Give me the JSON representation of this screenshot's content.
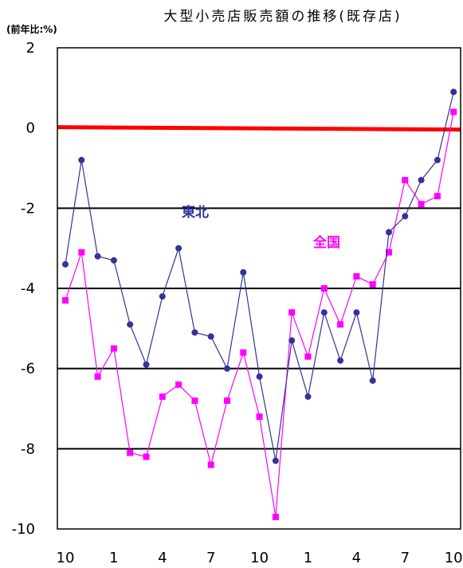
{
  "chart_data": {
    "type": "line",
    "title": "大型小売店販売額の推移(既存店)",
    "ylabel": "(前年比:%)",
    "xlabel": "",
    "ylim": [
      -10,
      2
    ],
    "yticks": [
      2,
      0,
      -2,
      -4,
      -6,
      -8,
      -10
    ],
    "x_tick_labels": [
      "10",
      "1",
      "4",
      "7",
      "10",
      "1",
      "4",
      "7",
      "10"
    ],
    "x_tick_indices": [
      0,
      3,
      6,
      9,
      12,
      15,
      18,
      21,
      24
    ],
    "grid": true,
    "reference_line": 0,
    "colors": {
      "reference": "#ff0000",
      "grid": "#000000"
    },
    "series": [
      {
        "name": "東北",
        "color": "#333399",
        "marker": "circle",
        "values": [
          -3.4,
          -0.8,
          -3.2,
          -3.3,
          -4.9,
          -5.9,
          -4.2,
          -3.0,
          -5.1,
          -5.2,
          -6.0,
          -3.6,
          -6.2,
          -8.3,
          -5.3,
          -6.7,
          -4.6,
          -5.8,
          -4.6,
          -6.3,
          -2.6,
          -2.2,
          -1.3,
          -0.8,
          0.9
        ]
      },
      {
        "name": "全国",
        "color": "#ff00ff",
        "marker": "square",
        "values": [
          -4.3,
          -3.1,
          -6.2,
          -5.5,
          -8.1,
          -8.2,
          -6.7,
          -6.4,
          -6.8,
          -8.4,
          -6.8,
          -5.6,
          -7.2,
          -9.7,
          -4.6,
          -5.7,
          -4.0,
          -4.9,
          -3.7,
          -3.9,
          -3.1,
          -1.3,
          -1.9,
          -1.7,
          0.4
        ]
      }
    ]
  }
}
